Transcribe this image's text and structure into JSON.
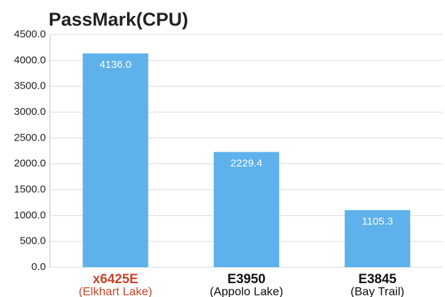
{
  "chart_data": {
    "type": "bar",
    "title": "PassMark(CPU)",
    "categories": [
      "x6425E",
      "E3950",
      "E3845"
    ],
    "category_sublabels": [
      "(Elkhart Lake)",
      "(Appolo Lake)",
      "(Bay Trail)"
    ],
    "category_colors": [
      "#c8442a",
      "#111111",
      "#111111"
    ],
    "values": [
      4136.0,
      2229.4,
      1105.3
    ],
    "value_labels": [
      "4136.0",
      "2229.4",
      "1105.3"
    ],
    "color": "#5eb1ea",
    "ylim": [
      0,
      4500
    ],
    "yticks": [
      {
        "value": 0,
        "label": "0.0"
      },
      {
        "value": 500,
        "label": "500.0"
      },
      {
        "value": 1000,
        "label": "1000.0"
      },
      {
        "value": 1500,
        "label": "1500.0"
      },
      {
        "value": 2000,
        "label": "2000.0"
      },
      {
        "value": 2500,
        "label": "2500.0"
      },
      {
        "value": 3000,
        "label": "3000.0"
      },
      {
        "value": 3500,
        "label": "3500.0"
      },
      {
        "value": 4000,
        "label": "4000.0"
      },
      {
        "value": 4500,
        "label": "4500.0"
      }
    ],
    "grid": true
  }
}
